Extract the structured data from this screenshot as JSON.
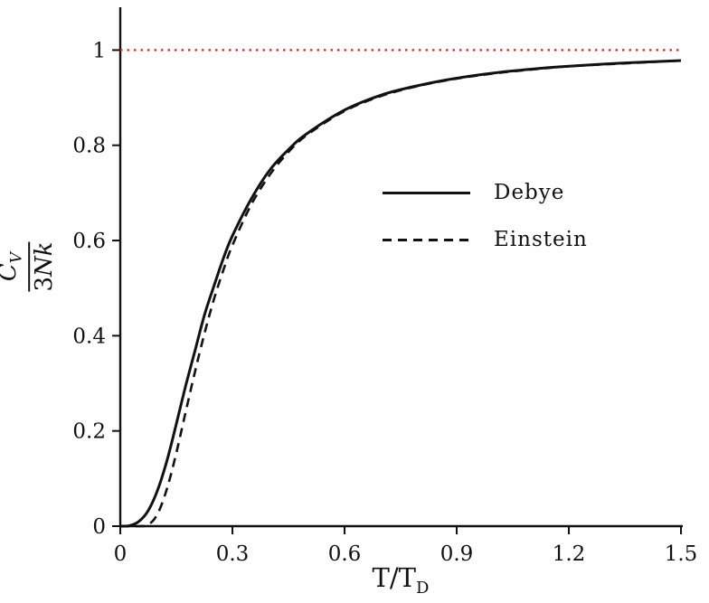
{
  "figure": {
    "background": "#ffffff",
    "axis_color": "#111111"
  },
  "chart_data": {
    "type": "line",
    "title": "",
    "xlabel": "T/T_D",
    "ylabel": "C_V / (3Nk)",
    "xlim": [
      0,
      1.5
    ],
    "ylim": [
      0,
      1.09
    ],
    "grid": false,
    "legend_position": "inside middle-right",
    "x_ticks": [
      0,
      0.3,
      0.6,
      0.9,
      1.2,
      1.5
    ],
    "x_tick_labels": [
      "0",
      "0.3",
      "0.6",
      "0.9",
      "1.2",
      "1.5"
    ],
    "y_ticks": [
      0,
      0.2,
      0.4,
      0.6,
      0.8,
      1
    ],
    "y_tick_labels": [
      "0",
      "0.2",
      "0.4",
      "0.6",
      "0.8",
      "1"
    ],
    "x": [
      0,
      0.025,
      0.05,
      0.075,
      0.1,
      0.125,
      0.15,
      0.175,
      0.2,
      0.225,
      0.25,
      0.275,
      0.3,
      0.35,
      0.4,
      0.45,
      0.5,
      0.6,
      0.7,
      0.8,
      0.9,
      1.0,
      1.1,
      1.2,
      1.35,
      1.5
    ],
    "series": [
      {
        "name": "Debye",
        "style": "solid",
        "color": "#111111",
        "values": [
          0,
          0.001,
          0.01,
          0.033,
          0.076,
          0.138,
          0.215,
          0.295,
          0.369,
          0.443,
          0.503,
          0.561,
          0.61,
          0.687,
          0.748,
          0.791,
          0.825,
          0.874,
          0.906,
          0.926,
          0.941,
          0.952,
          0.96,
          0.966,
          0.973,
          0.978
        ]
      },
      {
        "name": "Einstein",
        "style": "dashed",
        "color": "#111111",
        "values": [
          0,
          0.0,
          0.0,
          0.003,
          0.026,
          0.079,
          0.154,
          0.24,
          0.325,
          0.404,
          0.475,
          0.536,
          0.59,
          0.675,
          0.738,
          0.786,
          0.822,
          0.872,
          0.904,
          0.925,
          0.94,
          0.951,
          0.959,
          0.966,
          0.972,
          0.978
        ]
      }
    ],
    "reference_line": {
      "y": 1,
      "style": "dotted",
      "color": "#ee2020"
    }
  },
  "labels": {
    "ylabel_num_main": "C",
    "ylabel_num_sub": "V",
    "ylabel_den_num": "3",
    "ylabel_den_letters": "Nk",
    "xlabel_main": "T/T",
    "xlabel_sub": "D"
  }
}
